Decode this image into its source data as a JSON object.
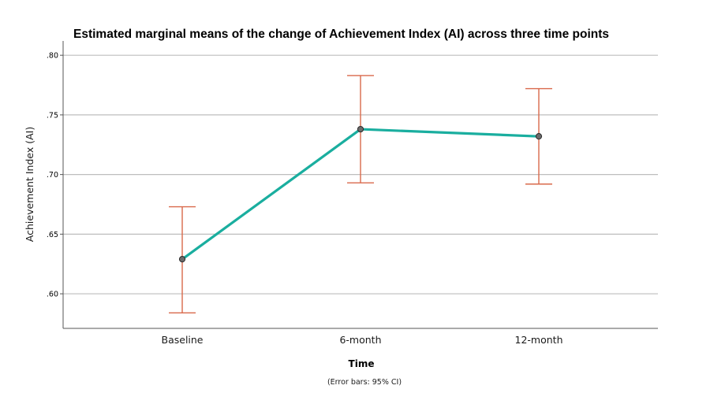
{
  "chart_data": {
    "type": "line",
    "title": "Estimated marginal means of the change of Achievement Index (AI) across three time points",
    "xlabel": "Time",
    "ylabel": "Achievement Index (AI)",
    "footnote": "(Error bars: 95% CI)",
    "categories": [
      "Baseline",
      "6-month",
      "12-month"
    ],
    "series": [
      {
        "values": [
          0.629,
          0.738,
          0.732
        ],
        "ci_lower": [
          0.584,
          0.693,
          0.692
        ],
        "ci_upper": [
          0.673,
          0.783,
          0.772
        ]
      }
    ],
    "ylim": [
      0.571,
      0.812
    ],
    "yticks": [
      0.6,
      0.65,
      0.7,
      0.75,
      0.8
    ],
    "ytick_labels": [
      ".60",
      ".65",
      ".70",
      ".75",
      ".80"
    ],
    "grid": true,
    "colors": {
      "line": "#1aae9f",
      "error_bar": "#d9694b",
      "marker_fill": "#6b6b6b",
      "marker_stroke": "#2b2b2b",
      "grid": "#bdbdbd",
      "axis": "#555555"
    }
  }
}
